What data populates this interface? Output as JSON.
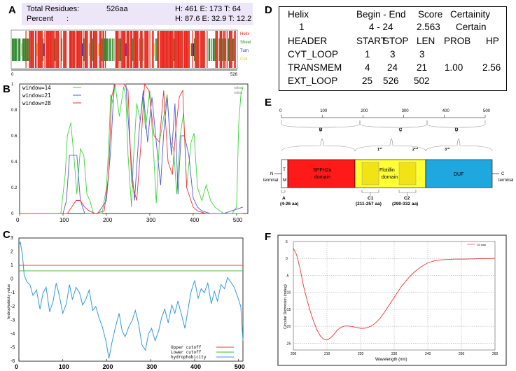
{
  "panels": {
    "a": "A",
    "b": "B",
    "c": "C",
    "d": "D",
    "e": "E",
    "f": "F"
  },
  "panel_a": {
    "total_label": "Total Residues:",
    "total_value": "526aa",
    "total_counts": "H: 461 E: 173 T: 64",
    "percent_label": "Percent",
    "percent_colon": ":",
    "percent_values": "H: 87.6 E: 32.9 T: 12.2",
    "axis_start": "0",
    "axis_end": "526",
    "legend": [
      "Helix",
      "Sheet",
      "Turn",
      "Coil"
    ],
    "legend_colors": [
      "#e8261c",
      "#2e8b2e",
      "#2222cc",
      "#e8c830"
    ]
  },
  "panel_b": {
    "legend": [
      "window=14",
      "window=21",
      "window=28"
    ],
    "legend_colors": [
      "#3dd43d",
      "#5555dd",
      "#ee3333"
    ],
    "corner_text": [
      "ndow",
      "ndow"
    ],
    "y_ticks": [
      "1",
      "0.8",
      "0.6",
      "0.4",
      "0.2",
      "0"
    ],
    "x_ticks": [
      "0",
      "100",
      "200",
      "300",
      "400",
      "500"
    ]
  },
  "panel_c": {
    "ylabel": "hydrophobicity value",
    "y_ticks": [
      "3",
      "2",
      "1",
      "0",
      "-1",
      "-2",
      "-3",
      "-4",
      "-5",
      "-6"
    ],
    "x_ticks": [
      "0",
      "100",
      "200",
      "300",
      "400",
      "500"
    ],
    "legend": [
      "Upper cutoff",
      "Lower cutoff",
      "hydrophobicity"
    ],
    "legend_colors": [
      "#ee3333",
      "#33bb33",
      "#3399dd"
    ]
  },
  "panel_d": {
    "row1": [
      "Helix",
      "Begin - End",
      "Score",
      "Certainity"
    ],
    "row2": [
      "1",
      "4 - 24",
      "2.563",
      "Certain"
    ],
    "header": [
      "HEADER",
      "START",
      "STOP",
      "LEN",
      "PROB",
      "HP"
    ],
    "rows": [
      [
        "CYT_LOOP",
        "1",
        "3",
        "3",
        "",
        ""
      ],
      [
        "TRANSMEM",
        "4",
        "24",
        "21",
        "1.00",
        "2.56"
      ],
      [
        "EXT_LOOP",
        "25",
        "526",
        "502",
        "",
        ""
      ]
    ]
  },
  "panel_e": {
    "ruler": [
      "0",
      "100",
      "200",
      "300",
      "400",
      "500"
    ],
    "braces": [
      "B",
      "C",
      "D"
    ],
    "n_label": [
      "N",
      "terminal"
    ],
    "c_label": [
      "C",
      "terminal"
    ],
    "tm_label": [
      "T",
      "M"
    ],
    "spfh_label": [
      "SPFH2a",
      "domain"
    ],
    "flot_label": [
      "Flotillin",
      "domain"
    ],
    "duf_label": "DUF",
    "first": "1",
    "first_sup": "st",
    "second": "2",
    "second_sup": "nd",
    "third": "3",
    "third_sup": "rd",
    "bottom": [
      {
        "name": "A",
        "range": "(4-26 aa)"
      },
      {
        "name": "C1",
        "range": "(211-257 aa)"
      },
      {
        "name": "C2",
        "range": "(290-332 aa)"
      }
    ],
    "colors": {
      "spfh": "#ff1a1a",
      "flot": "#ffff33",
      "duf": "#1fa8e0"
    }
  },
  "panel_f": {
    "ylabel": "Circular Dichroism (mdeg)",
    "xlabel": "Wavelength (nm)",
    "legend": "CD data",
    "y_ticks": [
      "5",
      "0",
      "-5",
      "-10",
      "-15",
      "-20",
      "-25"
    ],
    "x_ticks": [
      "200",
      "210",
      "220",
      "230",
      "240",
      "250",
      "260"
    ]
  },
  "chart_data": [
    {
      "type": "line",
      "title": "B",
      "xlim": [
        0,
        526
      ],
      "ylim": [
        0,
        1
      ],
      "series": [
        {
          "name": "window=14",
          "x": [
            0,
            95,
            100,
            105,
            110,
            118,
            125,
            132,
            140,
            148,
            155,
            162,
            170,
            180,
            190,
            200,
            205,
            210,
            215,
            220,
            230,
            240,
            245,
            250,
            258,
            262,
            270,
            278,
            285,
            290,
            300,
            310,
            315,
            322,
            330,
            340,
            348,
            355,
            362,
            370,
            378,
            385,
            395,
            402,
            410,
            420,
            430,
            440,
            450,
            470,
            490,
            500,
            505,
            510,
            515
          ],
          "y": [
            0,
            0,
            0.15,
            0.3,
            0.6,
            0.7,
            0.45,
            0.15,
            0.5,
            0.45,
            0.15,
            0.1,
            0,
            0,
            0,
            0.2,
            0.5,
            0.92,
            0.85,
            1.0,
            0.75,
            0.98,
            0.9,
            0.45,
            0.05,
            0.4,
            0.85,
            0.72,
            0.9,
            0.65,
            0.95,
            0.4,
            0.08,
            0.55,
            0.7,
            0.92,
            0.55,
            0.5,
            0.15,
            0.6,
            0.78,
            0.2,
            0.55,
            0.62,
            0.2,
            0.1,
            0.22,
            0.1,
            0.05,
            0.0,
            0.0,
            0.05,
            0.7,
            0.92,
            0.98
          ]
        },
        {
          "name": "window=21",
          "x": [
            0,
            100,
            108,
            115,
            122,
            132,
            140,
            150,
            160,
            180,
            200,
            210,
            218,
            230,
            245,
            255,
            265,
            275,
            285,
            295,
            305,
            315,
            325,
            332,
            340,
            350,
            358,
            365,
            372,
            380,
            390,
            400,
            410,
            420,
            440,
            470,
            515
          ],
          "y": [
            0,
            0,
            0.1,
            0.45,
            0.45,
            0.45,
            0.1,
            0,
            0,
            0,
            0.1,
            0.5,
            1.0,
            1.0,
            1.0,
            0.5,
            0.1,
            0.62,
            0.95,
            0.55,
            0.9,
            0.55,
            0.22,
            0.62,
            0.9,
            0.45,
            0.85,
            0.15,
            0.6,
            0.6,
            0.45,
            0.12,
            0.05,
            0.02,
            0,
            0,
            0.05
          ]
        },
        {
          "name": "window=28",
          "x": [
            0,
            110,
            120,
            130,
            140,
            150,
            160,
            175,
            195,
            205,
            212,
            220,
            240,
            250,
            258,
            270,
            280,
            288,
            298,
            310,
            322,
            332,
            342,
            352,
            360,
            368,
            376,
            385,
            400,
            410,
            430,
            460,
            490,
            515
          ],
          "y": [
            0,
            0,
            0.05,
            0.1,
            0.1,
            0.05,
            0.02,
            0,
            0.02,
            0.3,
            0.9,
            1.0,
            1.0,
            0.95,
            0.25,
            0.1,
            0.55,
            1.0,
            0.95,
            0.6,
            0.55,
            0.95,
            0.4,
            0.3,
            0.65,
            0.9,
            0.95,
            0.2,
            0.05,
            0.02,
            0,
            0,
            0,
            0
          ]
        }
      ]
    },
    {
      "type": "line",
      "title": "C",
      "xlim": [
        0,
        510
      ],
      "ylim": [
        -6,
        3
      ],
      "series": [
        {
          "name": "Upper cutoff",
          "x": [
            0,
            510
          ],
          "y": [
            1,
            1
          ]
        },
        {
          "name": "Lower cutoff",
          "x": [
            0,
            510
          ],
          "y": [
            0.6,
            0.6
          ]
        },
        {
          "name": "hydrophobicity",
          "x": [
            0,
            3,
            8,
            12,
            18,
            25,
            32,
            40,
            48,
            55,
            62,
            70,
            78,
            85,
            92,
            100,
            108,
            115,
            122,
            130,
            138,
            145,
            152,
            160,
            168,
            175,
            182,
            190,
            198,
            205,
            212,
            220,
            228,
            235,
            242,
            250,
            258,
            265,
            272,
            280,
            288,
            295,
            302,
            310,
            318,
            325,
            332,
            340,
            348,
            355,
            362,
            370,
            378,
            385,
            392,
            400,
            408,
            415,
            422,
            430,
            438,
            445,
            452,
            460,
            468,
            475,
            482,
            490,
            498,
            505,
            510
          ],
          "y": [
            2.5,
            2.7,
            1.8,
            0.3,
            -0.2,
            -0.4,
            -1.2,
            -0.8,
            -2.2,
            -1.0,
            -0.6,
            -2.4,
            -1.6,
            -0.3,
            -1.2,
            -2.5,
            -1.8,
            -0.4,
            -1.5,
            -0.6,
            -1.0,
            -1.9,
            -1.5,
            -0.8,
            -2.3,
            -2.0,
            -2.8,
            -3.5,
            -4.5,
            -5.8,
            -4.6,
            -3.5,
            -2.5,
            -3.8,
            -4.2,
            -3.5,
            -3.0,
            -2.3,
            -3.2,
            -4.8,
            -5.2,
            -4.0,
            -3.6,
            -4.5,
            -3.8,
            -2.8,
            -2.2,
            -3.2,
            -1.9,
            -2.5,
            -1.6,
            -2.6,
            -3.6,
            -2.2,
            -0.9,
            -0.1,
            -1.4,
            -0.7,
            -1.0,
            -0.3,
            -1.8,
            -0.9,
            -1.6,
            -0.4,
            -0.7,
            0.1,
            -0.2,
            -0.6,
            -1.3,
            -2.0,
            -4.5
          ]
        }
      ]
    },
    {
      "type": "line",
      "title": "F",
      "xlabel": "Wavelength (nm)",
      "ylabel": "Circular Dichroism (mdeg)",
      "xlim": [
        200,
        260
      ],
      "ylim": [
        -27,
        5
      ],
      "series": [
        {
          "name": "CD data",
          "x": [
            200,
            201,
            202,
            203,
            204,
            205,
            206,
            207,
            208,
            209,
            210,
            211,
            212,
            213,
            214,
            215,
            216,
            217,
            218,
            219,
            220,
            221,
            222,
            223,
            224,
            225,
            226,
            227,
            228,
            230,
            232,
            234,
            236,
            238,
            240,
            242,
            244,
            246,
            248,
            250,
            255,
            260
          ],
          "y": [
            3,
            1,
            -3,
            -8,
            -12,
            -15.5,
            -18.5,
            -21,
            -22.8,
            -23.8,
            -24,
            -23.5,
            -22.5,
            -21.2,
            -20.4,
            -20,
            -19.9,
            -20,
            -20.2,
            -20.4,
            -20.6,
            -20.6,
            -20.4,
            -20,
            -19.4,
            -18.5,
            -17.4,
            -16,
            -14.5,
            -11.5,
            -8.5,
            -6,
            -4,
            -2.5,
            -1.3,
            -0.7,
            -0.4,
            -0.3,
            -0.2,
            -0.2,
            -0.1,
            0
          ]
        }
      ]
    }
  ]
}
